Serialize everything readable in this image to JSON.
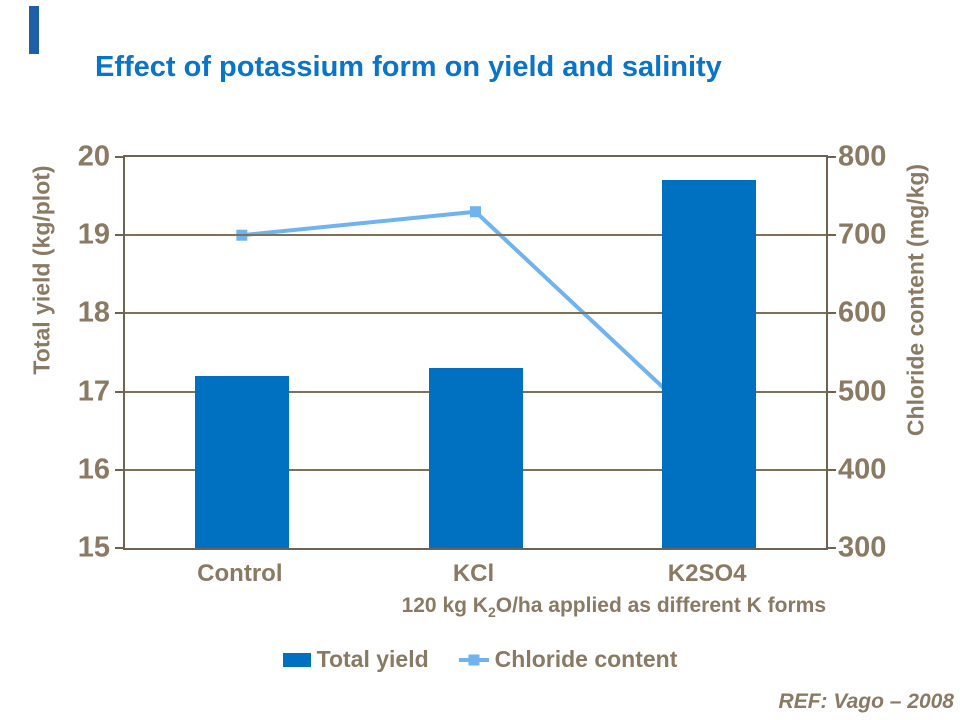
{
  "slide": {
    "title": "Effect of potassium form on yield and salinity",
    "reference": "REF: Vago – 2008",
    "accent_bar_color": "#1F5FA9"
  },
  "colors": {
    "title": "#0A74C8",
    "text": "#8A7963",
    "grid": "#7E7156",
    "border": "#6E6350"
  },
  "chart_data": {
    "type": "bar",
    "subtype": "bar+line dual axis",
    "categories": [
      "Control",
      "KCl",
      "K2SO4"
    ],
    "series": [
      {
        "name": "Total yield",
        "type": "bar",
        "axis": "left",
        "values": [
          17.2,
          17.3,
          19.7
        ],
        "color": "#0070C0"
      },
      {
        "name": "Chloride content",
        "type": "line",
        "axis": "right",
        "values": [
          700,
          730,
          450
        ],
        "color": "#6FB3F0",
        "marker": "square"
      }
    ],
    "left_axis": {
      "label": "Total yield (kg/plot)",
      "min": 15,
      "max": 20,
      "ticks": [
        20,
        19,
        18,
        17,
        16,
        15
      ]
    },
    "right_axis": {
      "label": "Chloride content (mg/kg)",
      "min": 300,
      "max": 800,
      "ticks": [
        800,
        700,
        600,
        500,
        400,
        300
      ]
    },
    "x_caption": {
      "prefix": "120 kg K",
      "sub": "2",
      "suffix": "O/ha applied as different K forms"
    },
    "grid": true,
    "legend_position": "bottom"
  }
}
